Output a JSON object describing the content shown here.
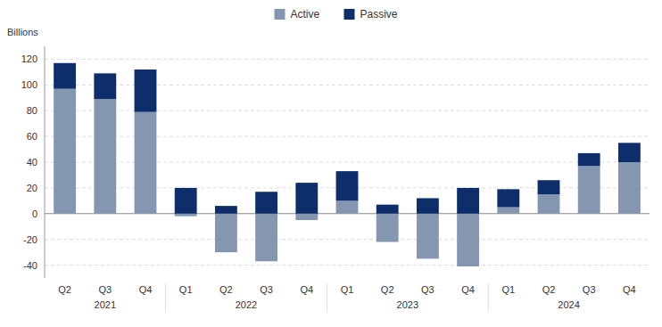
{
  "chart_data": {
    "type": "bar",
    "stacked": true,
    "grid": true,
    "legend": "top",
    "y_label": "Billions",
    "categories": [
      "Q2",
      "Q3",
      "Q4",
      "Q1",
      "Q2",
      "Q3",
      "Q4",
      "Q1",
      "Q2",
      "Q3",
      "Q4",
      "Q1",
      "Q2",
      "Q3",
      "Q4"
    ],
    "category_groups": [
      "2021",
      "2021",
      "2021",
      "2022",
      "2022",
      "2022",
      "2022",
      "2023",
      "2023",
      "2023",
      "2023",
      "2024",
      "2024",
      "2024",
      "2024"
    ],
    "series": [
      {
        "name": "Active",
        "color": "#8496b0",
        "values": [
          97,
          89,
          79,
          -2,
          -30,
          -37,
          -5,
          10,
          -22,
          -35,
          -41,
          5,
          15,
          37,
          40
        ]
      },
      {
        "name": "Passive",
        "color": "#0d2d6b",
        "values": [
          20,
          20,
          33,
          20,
          6,
          17,
          24,
          23,
          7,
          12,
          20,
          14,
          11,
          10,
          15
        ]
      }
    ],
    "ylim": [
      -50,
      130
    ],
    "yticks": [
      -40,
      -20,
      0,
      20,
      40,
      60,
      80,
      100,
      120
    ]
  }
}
